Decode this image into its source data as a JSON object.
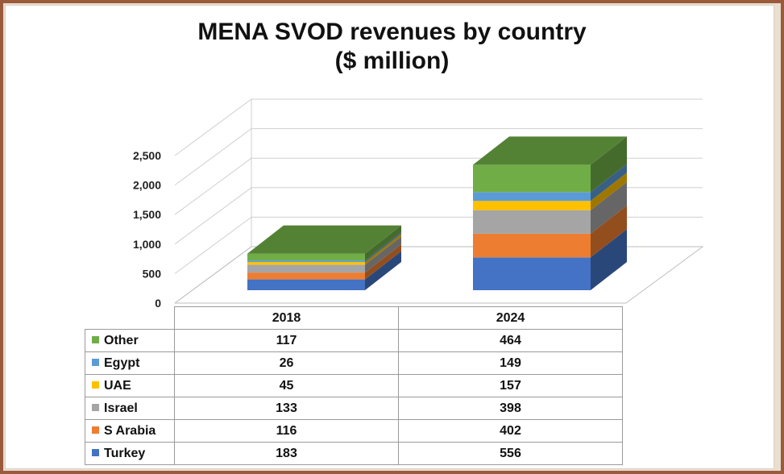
{
  "chart_data": {
    "type": "bar",
    "stacked": true,
    "three_d": true,
    "title": "MENA SVOD revenues by country",
    "subtitle": "($ million)",
    "categories": [
      "2018",
      "2024"
    ],
    "ylim": [
      0,
      2500
    ],
    "yticks": [
      "0",
      "500",
      "1,000",
      "1,500",
      "2,000",
      "2,500"
    ],
    "grid": true,
    "data_table": true,
    "series": [
      {
        "name": "Turkey",
        "values": [
          183,
          556
        ],
        "color": "#4472c4"
      },
      {
        "name": "S Arabia",
        "values": [
          116,
          402
        ],
        "color": "#ed7d31"
      },
      {
        "name": "Israel",
        "values": [
          133,
          398
        ],
        "color": "#a5a5a5"
      },
      {
        "name": "UAE",
        "values": [
          45,
          157
        ],
        "color": "#ffc000"
      },
      {
        "name": "Egypt",
        "values": [
          26,
          149
        ],
        "color": "#5b9bd5"
      },
      {
        "name": "Other",
        "values": [
          117,
          464
        ],
        "color": "#70ad47"
      }
    ],
    "table_order": [
      "Other",
      "Egypt",
      "UAE",
      "Israel",
      "S Arabia",
      "Turkey"
    ]
  }
}
